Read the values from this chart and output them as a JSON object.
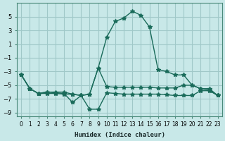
{
  "xlabel": "Humidex (Indice chaleur)",
  "ylabel": "",
  "bg_color": "#c8e8e8",
  "grid_color": "#a0c8c8",
  "line_color": "#1a6b5a",
  "x_values": [
    0,
    1,
    2,
    3,
    4,
    5,
    6,
    7,
    8,
    9,
    10,
    11,
    12,
    13,
    14,
    15,
    16,
    17,
    18,
    19,
    20,
    21,
    22,
    23
  ],
  "line1": [
    -3.5,
    -5.5,
    -6.2,
    -6.2,
    -6.2,
    -6.3,
    -6.3,
    -6.5,
    -6.3,
    -2.5,
    2.0,
    4.3,
    4.8,
    5.8,
    5.2,
    3.5,
    -2.7,
    -3.0,
    -3.5,
    -3.5,
    -5.0,
    -5.5,
    -5.7,
    -6.5
  ],
  "line2": [
    -3.5,
    -5.5,
    -6.2,
    -6.0,
    -6.1,
    -6.2,
    -7.5,
    -6.5,
    -8.5,
    -8.5,
    -6.1,
    -6.2,
    -6.3,
    -6.3,
    -6.3,
    -6.3,
    -6.3,
    -6.4,
    -6.5,
    -6.5,
    -6.5,
    -5.8,
    -5.8,
    -6.5
  ],
  "line3": [
    -3.5,
    -5.5,
    -6.2,
    -6.0,
    -6.0,
    -6.0,
    -6.3,
    -6.5,
    -6.3,
    -2.5,
    -5.2,
    -5.3,
    -5.3,
    -5.3,
    -5.3,
    -5.3,
    -5.4,
    -5.4,
    -5.4,
    -5.0,
    -5.0,
    -5.5,
    -5.5,
    -6.5
  ],
  "ylim": [
    -9.5,
    7.0
  ],
  "yticks": [
    -9,
    -7,
    -5,
    -3,
    -1,
    1,
    3,
    5
  ],
  "xlim": [
    -0.5,
    23.5
  ]
}
